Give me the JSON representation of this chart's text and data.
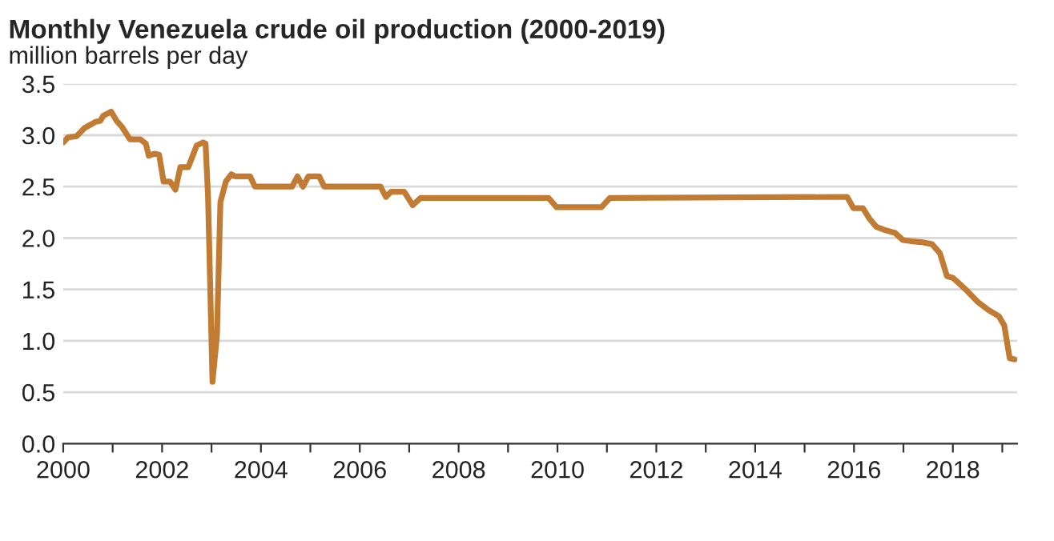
{
  "chart_data": {
    "type": "line",
    "title": "Monthly Venezuela crude oil production (2000-2019)",
    "subtitle": "million barrels per day",
    "series": [
      {
        "color": "#c27b33",
        "x": [
          2000.0,
          2000.1,
          2000.27,
          2000.43,
          2000.65,
          2000.75,
          2000.81,
          2000.97,
          2001.08,
          2001.19,
          2001.35,
          2001.56,
          2001.67,
          2001.73,
          2001.84,
          2001.94,
          2002.03,
          2002.16,
          2002.27,
          2002.37,
          2002.53,
          2002.7,
          2002.83,
          2002.88,
          2002.93,
          2003.02,
          2003.11,
          2003.18,
          2003.29,
          2003.4,
          2003.48,
          2003.78,
          2003.88,
          2004.63,
          2004.74,
          2004.85,
          2004.96,
          2005.18,
          2005.28,
          2006.42,
          2006.53,
          2006.63,
          2006.9,
          2007.07,
          2007.23,
          2009.82,
          2009.98,
          2010.89,
          2011.06,
          2015.86,
          2015.99,
          2016.18,
          2016.31,
          2016.45,
          2016.61,
          2016.83,
          2016.99,
          2017.15,
          2017.37,
          2017.58,
          2017.74,
          2017.88,
          2018.01,
          2018.28,
          2018.5,
          2018.72,
          2018.93,
          2019.04,
          2019.15,
          2019.25
        ],
        "values": [
          2.93,
          2.98,
          2.99,
          3.07,
          3.13,
          3.14,
          3.19,
          3.23,
          3.14,
          3.08,
          2.96,
          2.96,
          2.92,
          2.8,
          2.82,
          2.81,
          2.55,
          2.55,
          2.47,
          2.69,
          2.69,
          2.9,
          2.93,
          2.92,
          2.4,
          0.6,
          1.05,
          2.35,
          2.55,
          2.62,
          2.6,
          2.6,
          2.5,
          2.5,
          2.6,
          2.5,
          2.6,
          2.6,
          2.5,
          2.5,
          2.4,
          2.45,
          2.45,
          2.32,
          2.39,
          2.39,
          2.3,
          2.3,
          2.39,
          2.4,
          2.29,
          2.29,
          2.19,
          2.11,
          2.08,
          2.05,
          1.98,
          1.97,
          1.96,
          1.94,
          1.85,
          1.63,
          1.61,
          1.49,
          1.38,
          1.3,
          1.24,
          1.15,
          0.83,
          0.82
        ]
      }
    ],
    "xlim": [
      2000,
      2019.3
    ],
    "ylim": [
      0,
      3.5
    ],
    "xticks": [
      2000,
      {
        "value": 2001,
        "label": null
      },
      2002,
      {
        "value": 2003,
        "label": null
      },
      2004,
      {
        "value": 2005,
        "label": null
      },
      2006,
      {
        "value": 2007,
        "label": null
      },
      2008,
      {
        "value": 2009,
        "label": null
      },
      2010,
      {
        "value": 2011,
        "label": null
      },
      2012,
      {
        "value": 2013,
        "label": null
      },
      2014,
      {
        "value": 2015,
        "label": null
      },
      2016,
      {
        "value": 2017,
        "label": null
      },
      2018,
      {
        "value": 2019,
        "label": null
      }
    ],
    "yticks": [
      {
        "value": 0,
        "label": "0.0"
      },
      {
        "value": 0.5,
        "label": "0.5"
      },
      {
        "value": 1,
        "label": "1.0"
      },
      {
        "value": 1.5,
        "label": "1.5"
      },
      {
        "value": 2,
        "label": "2.0"
      },
      {
        "value": 2.5,
        "label": "2.5"
      },
      {
        "value": 3,
        "label": "3.0"
      },
      {
        "value": 3.5,
        "label": "3.5"
      }
    ],
    "grid": "y",
    "legend": false,
    "marker": "none",
    "line_style": "solid"
  }
}
